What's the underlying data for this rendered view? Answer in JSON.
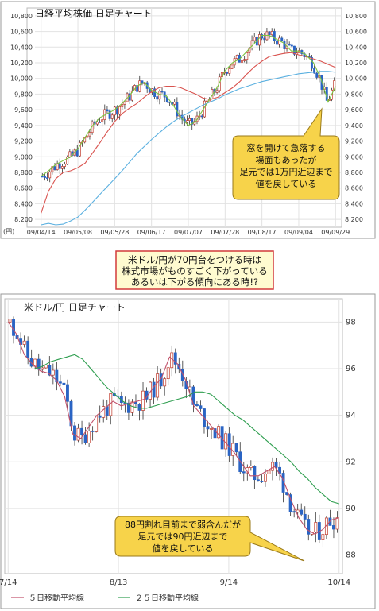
{
  "chart_data": [
    {
      "type": "candlestick",
      "title": "日経平均株価  日足チャート",
      "unit_label": "(円)",
      "y_ticks": [
        8200,
        8400,
        8600,
        8800,
        9000,
        9200,
        9400,
        9600,
        9800,
        10000,
        10200,
        10400,
        10600,
        10800
      ],
      "y_tick_labels": [
        "8,200",
        "8,400",
        "8,600",
        "8,800",
        "9,000",
        "9,200",
        "9,400",
        "9,600",
        "9,800",
        "10,000",
        "10,200",
        "10,400",
        "10,600",
        "10,800"
      ],
      "ylim": [
        8100,
        10900
      ],
      "x_labels": [
        "09/04/14",
        "09/05/08",
        "09/05/28",
        "09/06/17",
        "09/07/07",
        "09/07/28",
        "09/08/17",
        "09/09/04",
        "09/09/29"
      ],
      "series": [
        {
          "name": "",
          "color": "#d9534f",
          "values": [
            8280,
            8560,
            8720,
            8800,
            8820,
            8860,
            8920,
            9050,
            9180,
            9320,
            9450,
            9550,
            9620,
            9680,
            9760,
            9830,
            9880,
            9900,
            9900,
            9880,
            9840,
            9800,
            9750,
            9730,
            9760,
            9820,
            9880,
            9960,
            10060,
            10150,
            10220,
            10280,
            10300,
            10320,
            10330,
            10300,
            10280,
            10250,
            10220,
            10180,
            10140
          ]
        },
        {
          "name": "",
          "color": "#5bb0e0",
          "values": [
            8130,
            8150,
            8130,
            8140,
            8180,
            8230,
            8320,
            8420,
            8520,
            8620,
            8720,
            8820,
            8930,
            9040,
            9130,
            9220,
            9300,
            9380,
            9450,
            9510,
            9560,
            9610,
            9660,
            9700,
            9740,
            9790,
            9830,
            9870,
            9900,
            9930,
            9960,
            9980,
            10000,
            10020,
            10040,
            10060,
            10070,
            10080,
            10090,
            10090,
            10080
          ]
        },
        {
          "name": "",
          "color": "#7cc341",
          "values": [
            8750,
            8820,
            8900,
            8950,
            9000,
            9100,
            9250,
            9400,
            9500,
            9550,
            9600,
            9680,
            9780,
            9900,
            9950,
            9850,
            9800,
            9780,
            9650,
            9500,
            9400,
            9450,
            9600,
            9750,
            9900,
            10100,
            10200,
            10250,
            10350,
            10450,
            10550,
            10550,
            10500,
            10450,
            10350,
            10350,
            10300,
            10200,
            10000,
            9700,
            9900
          ]
        }
      ],
      "annotation": [
        "窓を開けて急落する",
        "場面もあったが",
        "足元では1万円近辺まで",
        "値を戻している"
      ]
    },
    {
      "type": "candlestick",
      "title": "米ドル/円  日足チャート",
      "y_ticks": [
        88,
        90,
        92,
        94,
        96,
        98
      ],
      "y_tick_labels": [
        "88",
        "90",
        "92",
        "94",
        "96",
        "98"
      ],
      "ylim": [
        87.2,
        99.0
      ],
      "x_labels": [
        "7/14",
        "8/13",
        "9/14",
        "10/14"
      ],
      "series": [
        {
          "name": "５日移動平均線",
          "color": "#c0506a",
          "values": [
            98.0,
            97.5,
            96.6,
            96.2,
            95.9,
            95.8,
            95.5,
            94.8,
            93.2,
            93.0,
            93.5,
            94.0,
            94.3,
            94.6,
            94.4,
            94.5,
            94.6,
            94.7,
            95.2,
            95.6,
            96.5,
            96.2,
            95.5,
            94.4,
            94.0,
            93.6,
            93.2,
            92.8,
            92.4,
            91.9,
            91.4,
            91.4,
            91.6,
            91.8,
            91.3,
            90.4,
            89.6,
            89.1,
            88.9,
            89.1,
            89.5,
            89.6
          ]
        },
        {
          "name": "２５日移動平均線",
          "color": "#2e9e4f",
          "values": [
            96.0,
            96.1,
            96.3,
            96.4,
            96.5,
            96.6,
            96.4,
            96.0,
            95.6,
            95.2,
            94.9,
            94.6,
            94.4,
            94.3,
            94.3,
            94.4,
            94.5,
            94.6,
            94.7,
            94.8,
            95.0,
            95.0,
            94.9,
            94.6,
            94.3,
            94.0,
            93.8,
            93.5,
            93.2,
            92.9,
            92.6,
            92.3,
            92.0,
            91.6,
            91.3,
            90.9,
            90.6,
            90.3,
            90.2
          ]
        }
      ],
      "annotation": [
        "88円割れ目前まで弱含んだが",
        "足元では90円近辺まで",
        "値を戻している"
      ]
    }
  ],
  "middle_caption": [
    "米ドル/円が70円台をつける時は",
    "株式市場がものすごく下がっている",
    "あるいは下がる傾向にある時!?"
  ],
  "colors": {
    "up_candle": "#ffffff",
    "down_candle": "#2a64c4",
    "callout_fill": "#f7d34a",
    "caption_border": "#d23a3a"
  }
}
